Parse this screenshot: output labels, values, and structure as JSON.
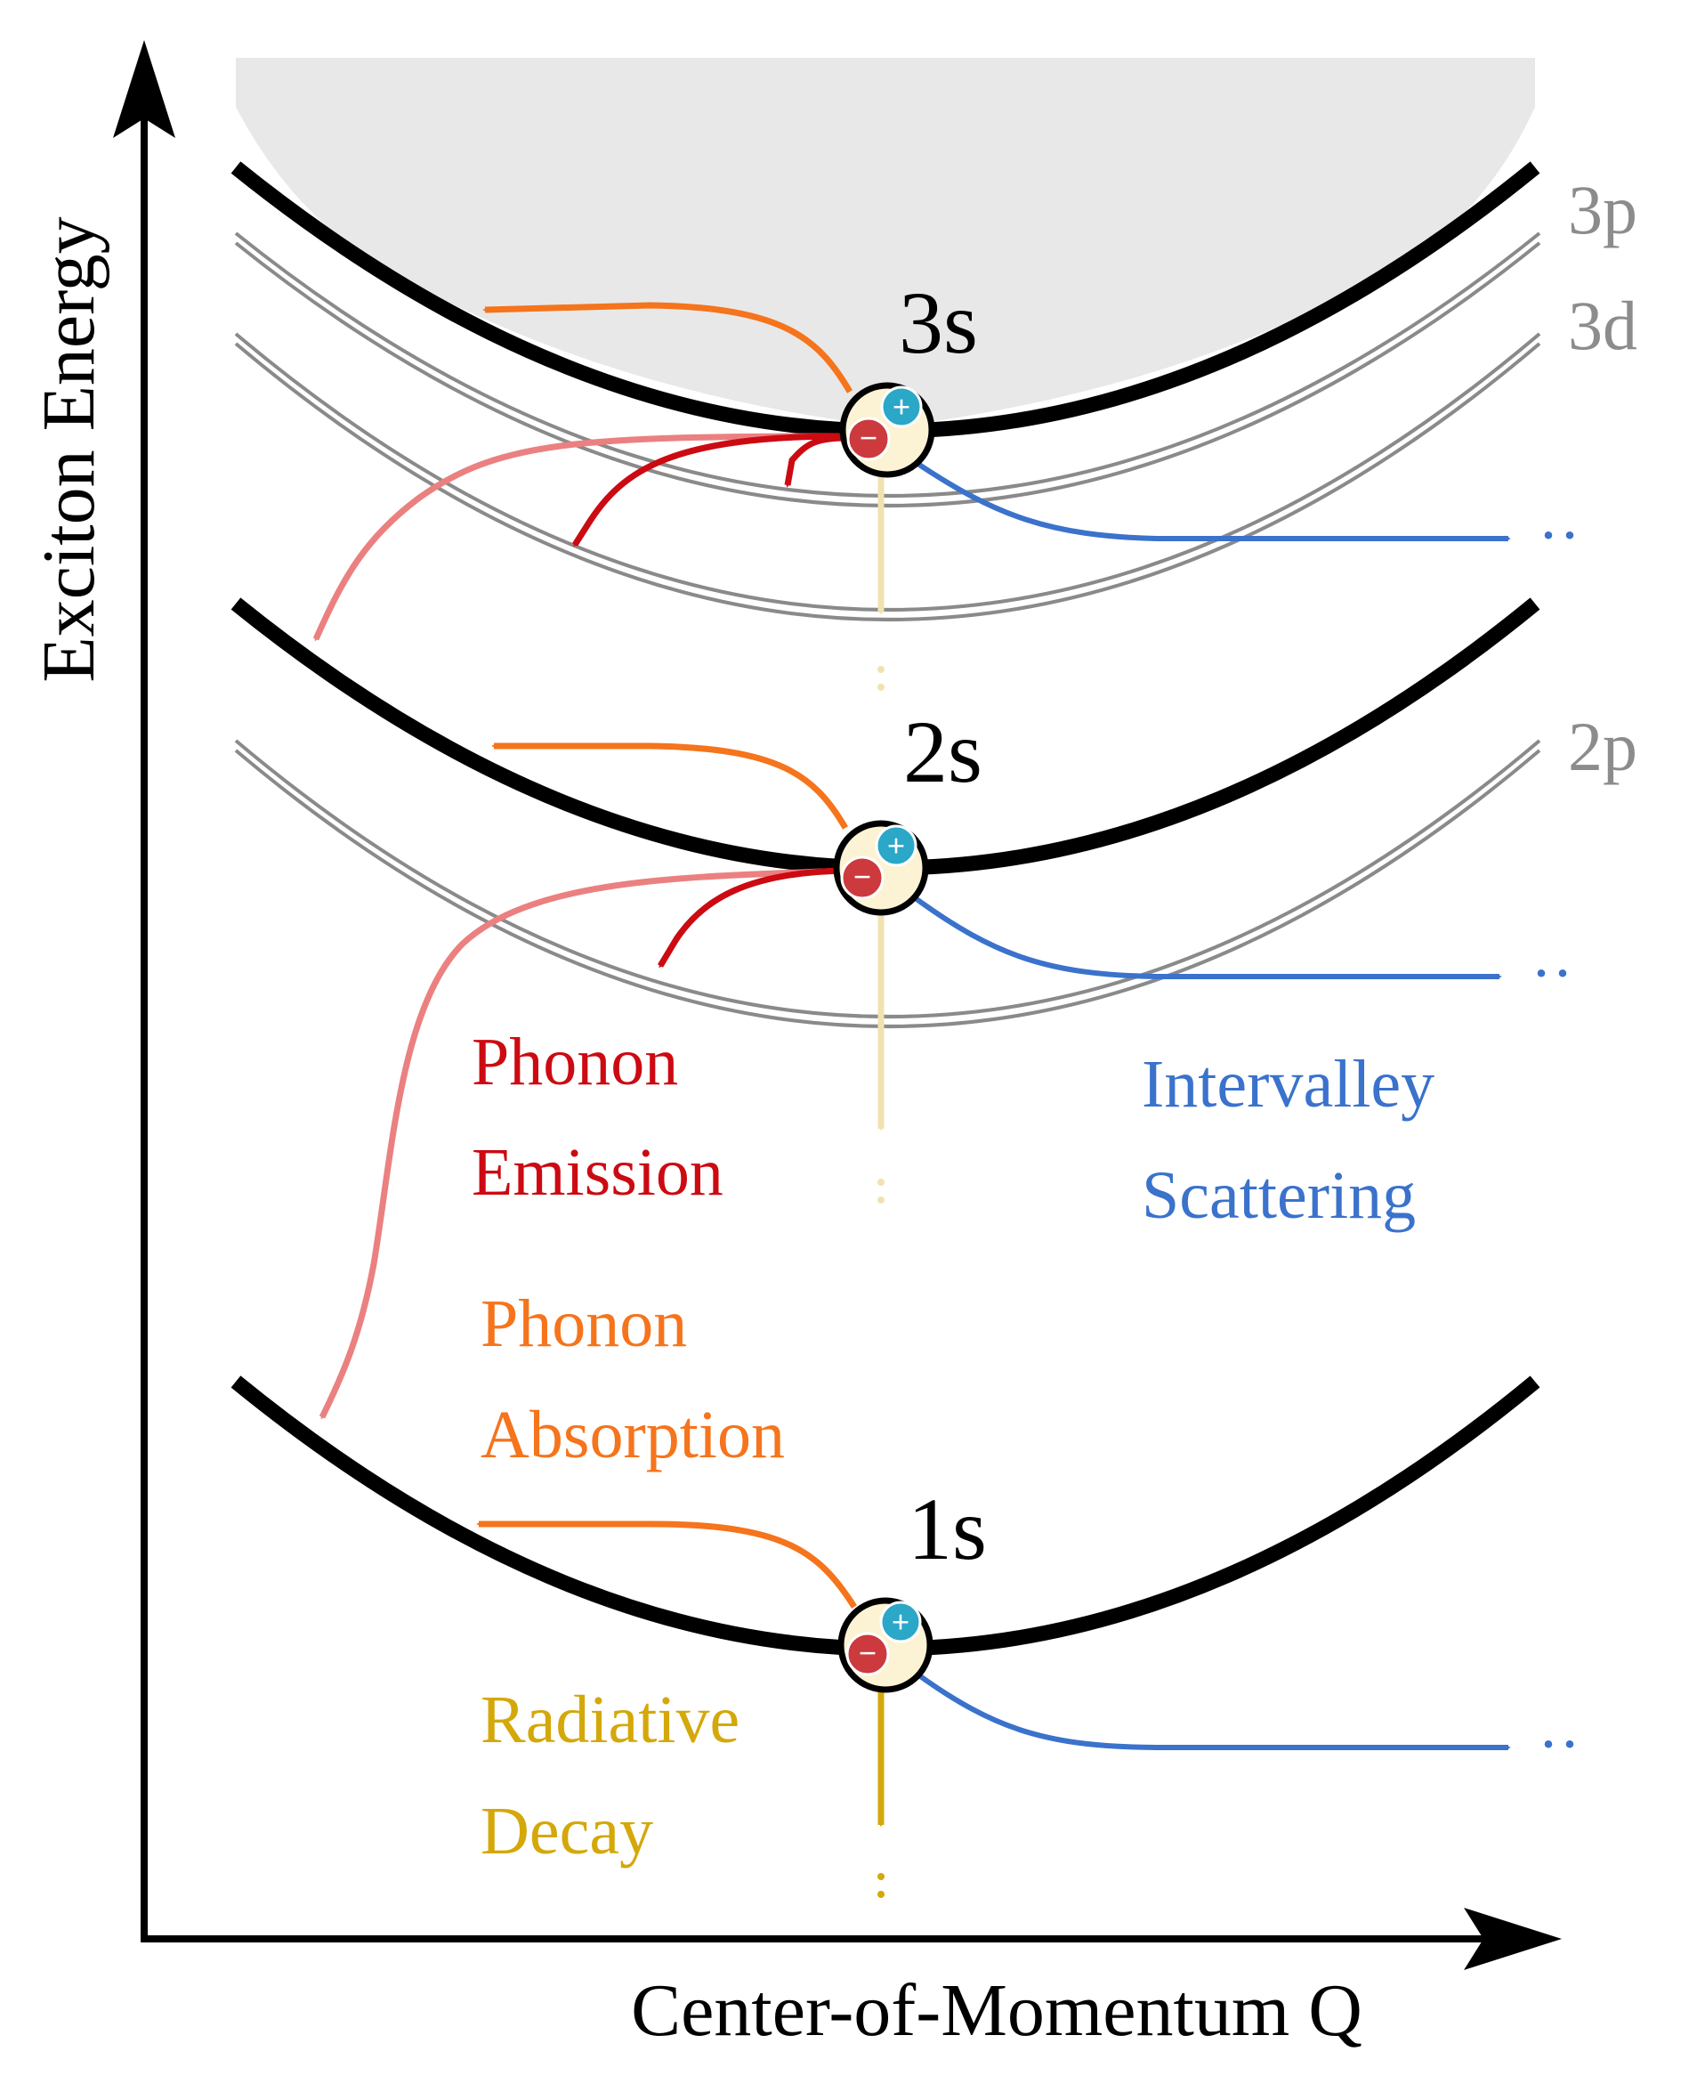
{
  "axes": {
    "y_label": "Exciton Energy",
    "x_label": "Center-of-Momentum Q"
  },
  "states": {
    "s3": "3s",
    "s2": "2s",
    "s1": "1s",
    "p3": "3p",
    "d3": "3d",
    "p2": "2p"
  },
  "processes": {
    "emission": [
      "Phonon",
      "Emission"
    ],
    "absorption": [
      "Phonon",
      "Absorption"
    ],
    "intervalley": [
      "Intervalley",
      "Scattering"
    ],
    "radiative": [
      "Radiative",
      "Decay"
    ]
  },
  "continuation": "··",
  "charges": {
    "plus": "+",
    "minus": "−"
  },
  "colors": {
    "curve": "#000000",
    "subcurve": "#8a8a8a",
    "continuum": "#e8e8e8",
    "absorption": "#f5741c",
    "emission": "#cc0a12",
    "emission_light": "#eb8080",
    "intervalley": "#3a72cc",
    "radiative": "#d4a80a",
    "radiative_light": "#f1e2b0",
    "label_gray": "#8c8c8c",
    "hole": "#2ba7c8",
    "electron": "#cc3a3e",
    "exciton_fill": "#fbf3d4"
  }
}
